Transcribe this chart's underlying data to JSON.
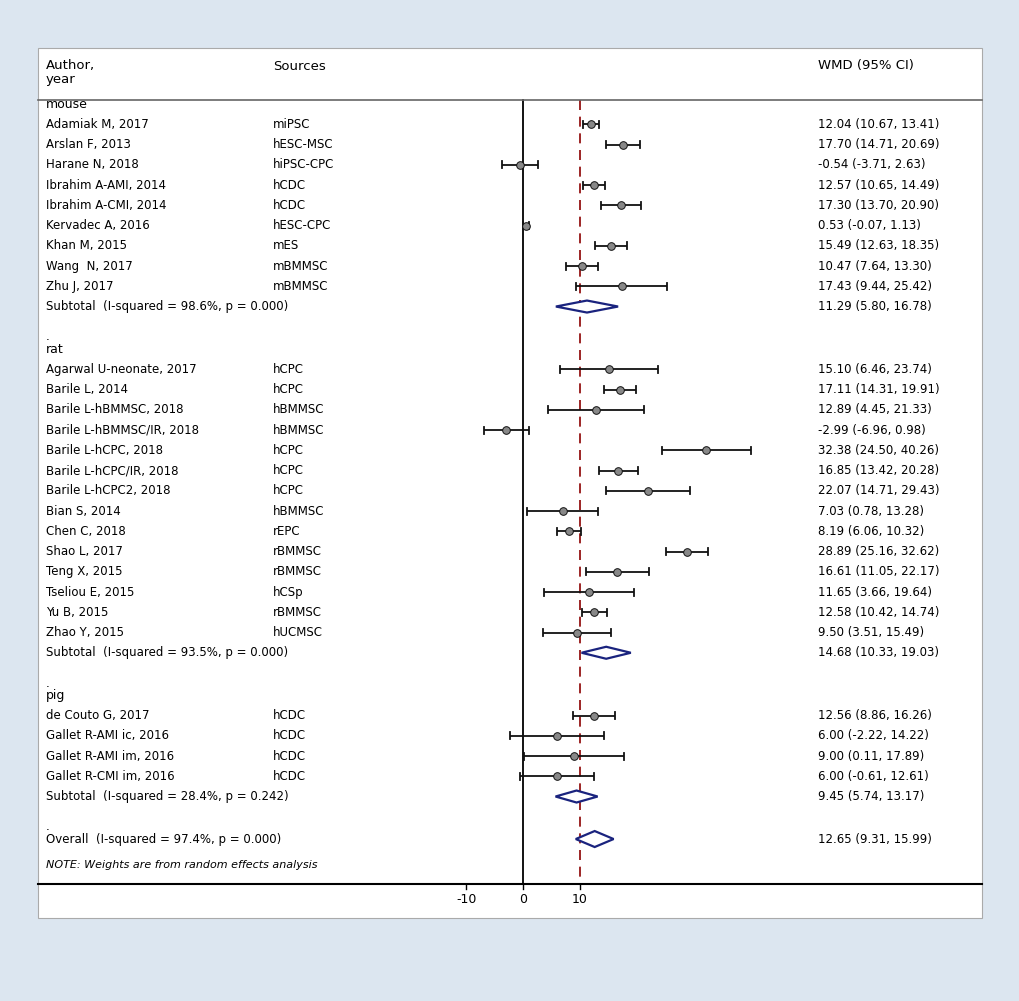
{
  "background_color": "#dce6f0",
  "panel_color": "#ffffff",
  "x_min": -15,
  "x_max": 45,
  "x_ticks": [
    -10,
    0,
    10
  ],
  "x_tick_labels": [
    "-10",
    "0",
    "10"
  ],
  "dashed_line_x": 10,
  "vertical_line_x": 0,
  "groups": [
    {
      "name": "mouse",
      "studies": [
        {
          "author": "Adamiak M, 2017",
          "source": "miPSC",
          "mean": 12.04,
          "ci_low": 10.67,
          "ci_high": 13.41,
          "wmd_text": "12.04 (10.67, 13.41)"
        },
        {
          "author": "Arslan F, 2013",
          "source": "hESC-MSC",
          "mean": 17.7,
          "ci_low": 14.71,
          "ci_high": 20.69,
          "wmd_text": "17.70 (14.71, 20.69)"
        },
        {
          "author": "Harane N, 2018",
          "source": "hiPSC-CPC",
          "mean": -0.54,
          "ci_low": -3.71,
          "ci_high": 2.63,
          "wmd_text": "-0.54 (-3.71, 2.63)"
        },
        {
          "author": "Ibrahim A-AMI, 2014",
          "source": "hCDC",
          "mean": 12.57,
          "ci_low": 10.65,
          "ci_high": 14.49,
          "wmd_text": "12.57 (10.65, 14.49)"
        },
        {
          "author": "Ibrahim A-CMI, 2014",
          "source": "hCDC",
          "mean": 17.3,
          "ci_low": 13.7,
          "ci_high": 20.9,
          "wmd_text": "17.30 (13.70, 20.90)"
        },
        {
          "author": "Kervadec A, 2016",
          "source": "hESC-CPC",
          "mean": 0.53,
          "ci_low": -0.07,
          "ci_high": 1.13,
          "wmd_text": "0.53 (-0.07, 1.13)"
        },
        {
          "author": "Khan M, 2015",
          "source": "mES",
          "mean": 15.49,
          "ci_low": 12.63,
          "ci_high": 18.35,
          "wmd_text": "15.49 (12.63, 18.35)"
        },
        {
          "author": "Wang  N, 2017",
          "source": "mBMMSC",
          "mean": 10.47,
          "ci_low": 7.64,
          "ci_high": 13.3,
          "wmd_text": "10.47 (7.64, 13.30)"
        },
        {
          "author": "Zhu J, 2017",
          "source": "mBMMSC",
          "mean": 17.43,
          "ci_low": 9.44,
          "ci_high": 25.42,
          "wmd_text": "17.43 (9.44, 25.42)"
        }
      ],
      "subtotal": {
        "mean": 11.29,
        "ci_low": 5.8,
        "ci_high": 16.78,
        "text": "Subtotal  (I-squared = 98.6%, p = 0.000)",
        "wmd_text": "11.29 (5.80, 16.78)"
      }
    },
    {
      "name": "rat",
      "studies": [
        {
          "author": "Agarwal U-neonate, 2017",
          "source": "hCPC",
          "mean": 15.1,
          "ci_low": 6.46,
          "ci_high": 23.74,
          "wmd_text": "15.10 (6.46, 23.74)"
        },
        {
          "author": "Barile L, 2014",
          "source": "hCPC",
          "mean": 17.11,
          "ci_low": 14.31,
          "ci_high": 19.91,
          "wmd_text": "17.11 (14.31, 19.91)"
        },
        {
          "author": "Barile L-hBMMSC, 2018",
          "source": "hBMMSC",
          "mean": 12.89,
          "ci_low": 4.45,
          "ci_high": 21.33,
          "wmd_text": "12.89 (4.45, 21.33)"
        },
        {
          "author": "Barile L-hBMMSC/IR, 2018",
          "source": "hBMMSC",
          "mean": -2.99,
          "ci_low": -6.96,
          "ci_high": 0.98,
          "wmd_text": "-2.99 (-6.96, 0.98)"
        },
        {
          "author": "Barile L-hCPC, 2018",
          "source": "hCPC",
          "mean": 32.38,
          "ci_low": 24.5,
          "ci_high": 40.26,
          "wmd_text": "32.38 (24.50, 40.26)"
        },
        {
          "author": "Barile L-hCPC/IR, 2018",
          "source": "hCPC",
          "mean": 16.85,
          "ci_low": 13.42,
          "ci_high": 20.28,
          "wmd_text": "16.85 (13.42, 20.28)"
        },
        {
          "author": "Barile L-hCPC2, 2018",
          "source": "hCPC",
          "mean": 22.07,
          "ci_low": 14.71,
          "ci_high": 29.43,
          "wmd_text": "22.07 (14.71, 29.43)"
        },
        {
          "author": "Bian S, 2014",
          "source": "hBMMSC",
          "mean": 7.03,
          "ci_low": 0.78,
          "ci_high": 13.28,
          "wmd_text": "7.03 (0.78, 13.28)"
        },
        {
          "author": "Chen C, 2018",
          "source": "rEPC",
          "mean": 8.19,
          "ci_low": 6.06,
          "ci_high": 10.32,
          "wmd_text": "8.19 (6.06, 10.32)"
        },
        {
          "author": "Shao L, 2017",
          "source": "rBMMSC",
          "mean": 28.89,
          "ci_low": 25.16,
          "ci_high": 32.62,
          "wmd_text": "28.89 (25.16, 32.62)"
        },
        {
          "author": "Teng X, 2015",
          "source": "rBMMSC",
          "mean": 16.61,
          "ci_low": 11.05,
          "ci_high": 22.17,
          "wmd_text": "16.61 (11.05, 22.17)"
        },
        {
          "author": "Tseliou E, 2015",
          "source": "hCSp",
          "mean": 11.65,
          "ci_low": 3.66,
          "ci_high": 19.64,
          "wmd_text": "11.65 (3.66, 19.64)"
        },
        {
          "author": "Yu B, 2015",
          "source": "rBMMSC",
          "mean": 12.58,
          "ci_low": 10.42,
          "ci_high": 14.74,
          "wmd_text": "12.58 (10.42, 14.74)"
        },
        {
          "author": "Zhao Y, 2015",
          "source": "hUCMSC",
          "mean": 9.5,
          "ci_low": 3.51,
          "ci_high": 15.49,
          "wmd_text": "9.50 (3.51, 15.49)"
        }
      ],
      "subtotal": {
        "mean": 14.68,
        "ci_low": 10.33,
        "ci_high": 19.03,
        "text": "Subtotal  (I-squared = 93.5%, p = 0.000)",
        "wmd_text": "14.68 (10.33, 19.03)"
      }
    },
    {
      "name": "pig",
      "studies": [
        {
          "author": "de Couto G, 2017",
          "source": "hCDC",
          "mean": 12.56,
          "ci_low": 8.86,
          "ci_high": 16.26,
          "wmd_text": "12.56 (8.86, 16.26)"
        },
        {
          "author": "Gallet R-AMI ic, 2016",
          "source": "hCDC",
          "mean": 6.0,
          "ci_low": -2.22,
          "ci_high": 14.22,
          "wmd_text": "6.00 (-2.22, 14.22)"
        },
        {
          "author": "Gallet R-AMI im, 2016",
          "source": "hCDC",
          "mean": 9.0,
          "ci_low": 0.11,
          "ci_high": 17.89,
          "wmd_text": "9.00 (0.11, 17.89)"
        },
        {
          "author": "Gallet R-CMI im, 2016",
          "source": "hCDC",
          "mean": 6.0,
          "ci_low": -0.61,
          "ci_high": 12.61,
          "wmd_text": "6.00 (-0.61, 12.61)"
        }
      ],
      "subtotal": {
        "mean": 9.45,
        "ci_low": 5.74,
        "ci_high": 13.17,
        "text": "Subtotal  (I-squared = 28.4%, p = 0.242)",
        "wmd_text": "9.45 (5.74, 13.17)"
      }
    }
  ],
  "overall": {
    "mean": 12.65,
    "ci_low": 9.31,
    "ci_high": 15.99,
    "text": "Overall  (I-squared = 97.4%, p = 0.000)",
    "wmd_text": "12.65 (9.31, 15.99)"
  },
  "note": "NOTE: Weights are from random effects analysis",
  "diamond_edge_color": "#1a237e",
  "diamond_face_color": "#ffffff",
  "dashed_color": "#8b0000",
  "vline_color": "#000000",
  "ci_color": "#111111",
  "text_fontsize": 8.5,
  "header_fontsize": 9.5,
  "group_fontsize": 9.0
}
